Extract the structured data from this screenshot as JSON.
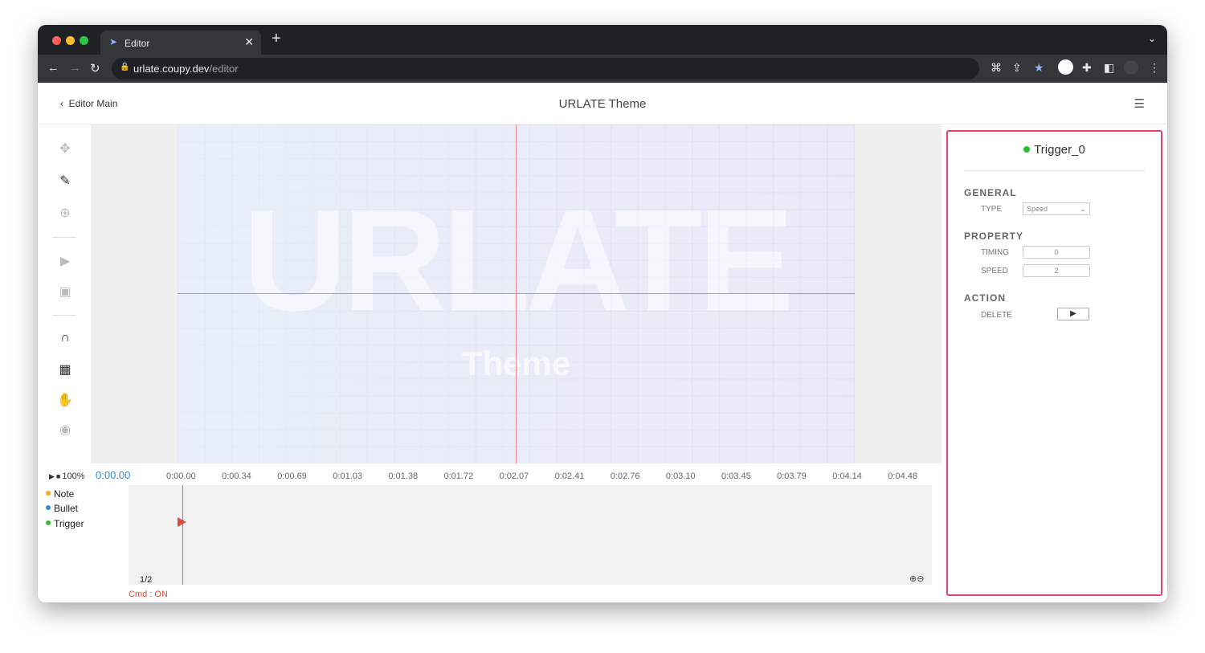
{
  "browser": {
    "tab_title": "Editor",
    "url_host": "urlate.coupy.dev",
    "url_path": "/editor"
  },
  "header": {
    "back_label": "Editor Main",
    "title": "URLATE Theme"
  },
  "canvas": {
    "logo_text": "URLATE",
    "logo_subtitle": "Theme"
  },
  "panel": {
    "title": "Trigger_0",
    "status_color": "#2cbf2c",
    "general": {
      "heading": "GENERAL",
      "type_label": "TYPE",
      "type_value": "Speed"
    },
    "property": {
      "heading": "PROPERTY",
      "timing_label": "TIMING",
      "timing_value": "0",
      "speed_label": "SPEED",
      "speed_value": "2"
    },
    "action": {
      "heading": "ACTION",
      "delete_label": "DELETE"
    }
  },
  "timeline": {
    "zoom_percent": "100%",
    "current_time": "0:00.00",
    "ticks": [
      "0:00.00",
      "0:00.34",
      "0:00.69",
      "0:01.03",
      "0:01.38",
      "0:01.72",
      "0:02.07",
      "0:02.41",
      "0:02.76",
      "0:03.10",
      "0:03.45",
      "0:03.79",
      "0:04.14",
      "0:04.48"
    ],
    "legend": [
      {
        "label": "Note",
        "color": "#f5a623"
      },
      {
        "label": "Bullet",
        "color": "#2f8ae0"
      },
      {
        "label": "Trigger",
        "color": "#2cbf2c"
      }
    ],
    "page": "1/2",
    "cmd_status": "Cmd : ON"
  }
}
